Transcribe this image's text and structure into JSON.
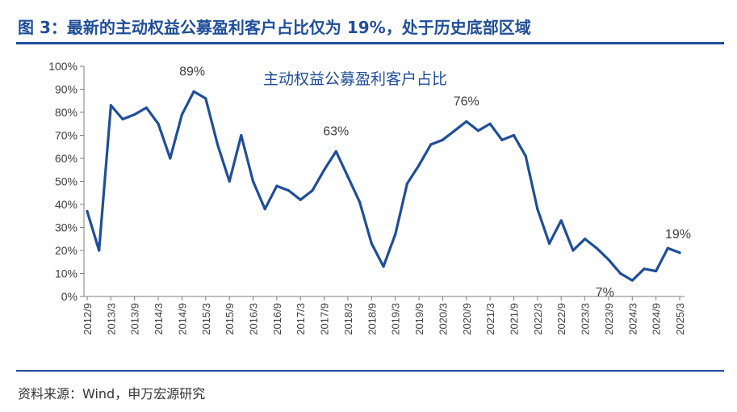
{
  "figure": {
    "title": "图 3：最新的主动权益公募盈利客户占比仅为 19%，处于历史底部区域",
    "source": "资料来源：Wind，申万宏源研究"
  },
  "chart_data": {
    "type": "line",
    "title": "",
    "xlabel": "",
    "ylabel": "",
    "ylim": [
      0,
      100
    ],
    "y_ticks": [
      "0%",
      "10%",
      "20%",
      "30%",
      "40%",
      "50%",
      "60%",
      "70%",
      "80%",
      "90%",
      "100%"
    ],
    "x_ticks": [
      "2012/9",
      "2013/3",
      "2013/9",
      "2014/3",
      "2014/9",
      "2015/3",
      "2015/9",
      "2016/3",
      "2016/9",
      "2017/3",
      "2017/9",
      "2018/3",
      "2018/9",
      "2019/3",
      "2019/9",
      "2020/3",
      "2020/9",
      "2021/3",
      "2021/9",
      "2022/3",
      "2022/9",
      "2023/3",
      "2023/9",
      "2024/3",
      "2024/9",
      "2025/3"
    ],
    "grid": false,
    "legend": "top-center",
    "color": "#1f4e9a",
    "series": [
      {
        "name": "主动权益公募盈利客户占比",
        "values": [
          37,
          20,
          83,
          77,
          79,
          82,
          75,
          60,
          79,
          89,
          86,
          66,
          50,
          70,
          50,
          38,
          48,
          46,
          42,
          46,
          55,
          63,
          52,
          41,
          23,
          13,
          27,
          49,
          57,
          66,
          68,
          72,
          76,
          72,
          75,
          68,
          70,
          61,
          38,
          23,
          33,
          20,
          25,
          21,
          16,
          10,
          7,
          12,
          11,
          21,
          19
        ]
      }
    ],
    "annotations": [
      {
        "text": "89%",
        "index": 9
      },
      {
        "text": "63%",
        "index": 21
      },
      {
        "text": "76%",
        "index": 32
      },
      {
        "text": "7%",
        "index": 46
      },
      {
        "text": "19%",
        "index": 50
      }
    ]
  }
}
